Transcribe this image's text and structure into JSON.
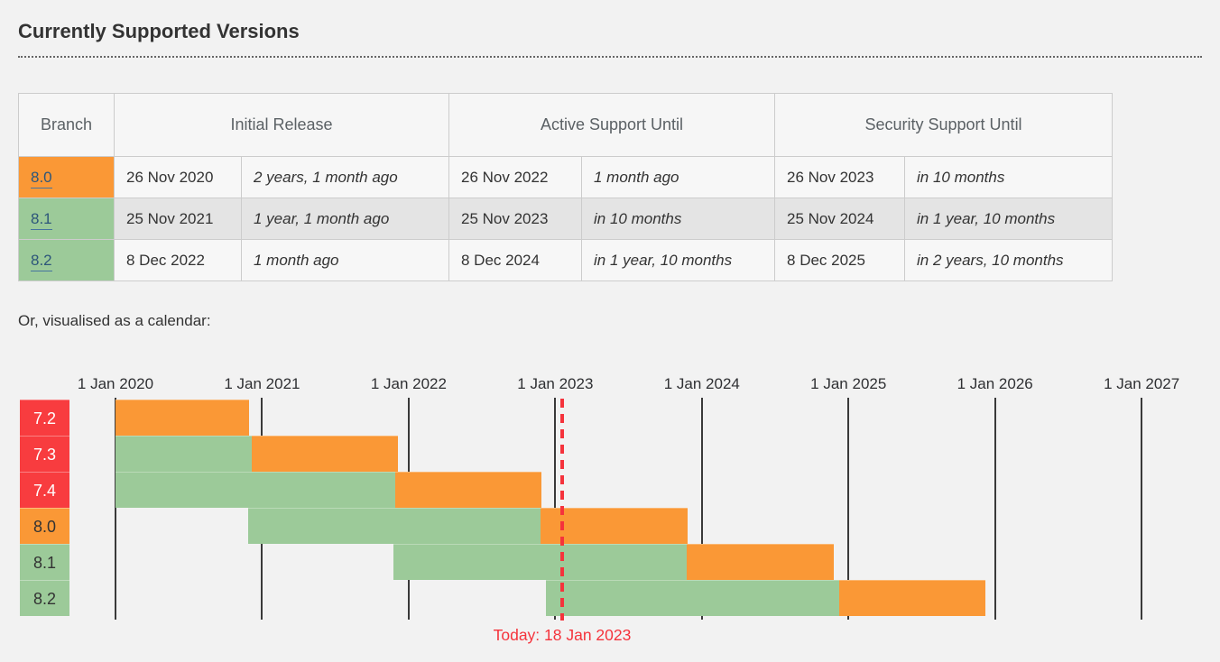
{
  "header": {
    "title": "Currently Supported Versions"
  },
  "calendar_intro": "Or, visualised as a calendar:",
  "table": {
    "columns": [
      "Branch",
      "Initial Release",
      "Active Support Until",
      "Security Support Until"
    ],
    "rows": [
      {
        "branch": "8.0",
        "status": "security",
        "initial_release": {
          "date": "26 Nov 2020",
          "relative": "2 years, 1 month ago"
        },
        "active_support_until": {
          "date": "26 Nov 2022",
          "relative": "1 month ago"
        },
        "security_support_until": {
          "date": "26 Nov 2023",
          "relative": "in 10 months"
        }
      },
      {
        "branch": "8.1",
        "status": "active",
        "initial_release": {
          "date": "25 Nov 2021",
          "relative": "1 year, 1 month ago"
        },
        "active_support_until": {
          "date": "25 Nov 2023",
          "relative": "in 10 months"
        },
        "security_support_until": {
          "date": "25 Nov 2024",
          "relative": "in 1 year, 10 months"
        }
      },
      {
        "branch": "8.2",
        "status": "active",
        "initial_release": {
          "date": "8 Dec 2022",
          "relative": "1 month ago"
        },
        "active_support_until": {
          "date": "8 Dec 2024",
          "relative": "in 1 year, 10 months"
        },
        "security_support_until": {
          "date": "8 Dec 2025",
          "relative": "in 2 years, 10 months"
        }
      }
    ]
  },
  "chart_data": {
    "type": "gantt-timeline",
    "title": "",
    "x_axis": {
      "labels": [
        "1 Jan 2020",
        "1 Jan 2021",
        "1 Jan 2022",
        "1 Jan 2023",
        "1 Jan 2024",
        "1 Jan 2025",
        "1 Jan 2026",
        "1 Jan 2027"
      ],
      "start_year": 2020,
      "end_year": 2027,
      "grid": true
    },
    "legend": {
      "shown": false
    },
    "rows": [
      {
        "branch": "7.2",
        "status": "eol",
        "segments": [
          {
            "type": "security",
            "from": 2020.0,
            "to": 2020.913
          }
        ]
      },
      {
        "branch": "7.3",
        "status": "eol",
        "segments": [
          {
            "type": "active",
            "from": 2020.0,
            "to": 2020.929
          },
          {
            "type": "security",
            "from": 2020.929,
            "to": 2021.929
          }
        ]
      },
      {
        "branch": "7.4",
        "status": "eol",
        "segments": [
          {
            "type": "active",
            "from": 2020.0,
            "to": 2021.907
          },
          {
            "type": "security",
            "from": 2021.907,
            "to": 2022.907
          }
        ]
      },
      {
        "branch": "8.0",
        "status": "security",
        "segments": [
          {
            "type": "active",
            "from": 2020.902,
            "to": 2022.901
          },
          {
            "type": "security",
            "from": 2022.901,
            "to": 2023.901
          }
        ]
      },
      {
        "branch": "8.1",
        "status": "active",
        "segments": [
          {
            "type": "active",
            "from": 2021.899,
            "to": 2023.899
          },
          {
            "type": "security",
            "from": 2023.899,
            "to": 2024.899
          }
        ]
      },
      {
        "branch": "8.2",
        "status": "active",
        "segments": [
          {
            "type": "active",
            "from": 2022.934,
            "to": 2024.934
          },
          {
            "type": "security",
            "from": 2024.934,
            "to": 2025.934
          }
        ]
      }
    ],
    "today": {
      "x": 2023.047,
      "label": "Today: 18 Jan 2023"
    },
    "colors": {
      "active": "#9cca99",
      "security": "#fa9836",
      "eol": "#f83c3f"
    }
  }
}
